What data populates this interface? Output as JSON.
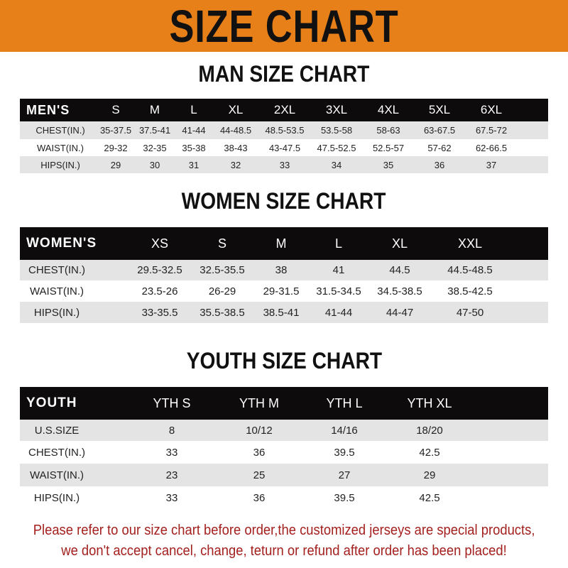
{
  "title": "SIZE CHART",
  "men": {
    "title": "MAN SIZE CHART",
    "header": [
      "MEN'S",
      "S",
      "M",
      "L",
      "XL",
      "2XL",
      "3XL",
      "4XL",
      "5XL",
      "6XL"
    ],
    "rows": [
      [
        "CHEST(IN.)",
        "35-37.5",
        "37.5-41",
        "41-44",
        "44-48.5",
        "48.5-53.5",
        "53.5-58",
        "58-63",
        "63-67.5",
        "67.5-72"
      ],
      [
        "WAIST(IN.)",
        "29-32",
        "32-35",
        "35-38",
        "38-43",
        "43-47.5",
        "47.5-52.5",
        "52.5-57",
        "57-62",
        "62-66.5"
      ],
      [
        "HIPS(IN.)",
        "29",
        "30",
        "31",
        "32",
        "33",
        "34",
        "35",
        "36",
        "37"
      ]
    ]
  },
  "women": {
    "title": "WOMEN SIZE CHART",
    "header": [
      "WOMEN'S",
      "XS",
      "S",
      "M",
      "L",
      "XL",
      "XXL"
    ],
    "rows": [
      [
        "CHEST(IN.)",
        "29.5-32.5",
        "32.5-35.5",
        "38",
        "41",
        "44.5",
        "44.5-48.5"
      ],
      [
        "WAIST(IN.)",
        "23.5-26",
        "26-29",
        "29-31.5",
        "31.5-34.5",
        "34.5-38.5",
        "38.5-42.5"
      ],
      [
        "HIPS(IN.)",
        "33-35.5",
        "35.5-38.5",
        "38.5-41",
        "41-44",
        "44-47",
        "47-50"
      ]
    ]
  },
  "youth": {
    "title": "YOUTH SIZE CHART",
    "header": [
      "YOUTH",
      "YTH S",
      "YTH M",
      "YTH L",
      "YTH XL"
    ],
    "rows": [
      [
        "U.S.SIZE",
        "8",
        "10/12",
        "14/16",
        "18/20"
      ],
      [
        "CHEST(IN.)",
        "33",
        "36",
        "39.5",
        "42.5"
      ],
      [
        "WAIST(IN.)",
        "23",
        "25",
        "27",
        "29"
      ],
      [
        "HIPS(IN.)",
        "33",
        "36",
        "39.5",
        "42.5"
      ]
    ]
  },
  "notice": [
    "Please refer to our size chart before order,the customized jerseys are special products,",
    "we don't accept cancel, change, teturn or refund after order has been placed!"
  ],
  "colors": {
    "banner": "#e8801a",
    "header_row": "#0d0b0b",
    "stripe": "#e4e4e4",
    "notice": "#a3201e"
  }
}
